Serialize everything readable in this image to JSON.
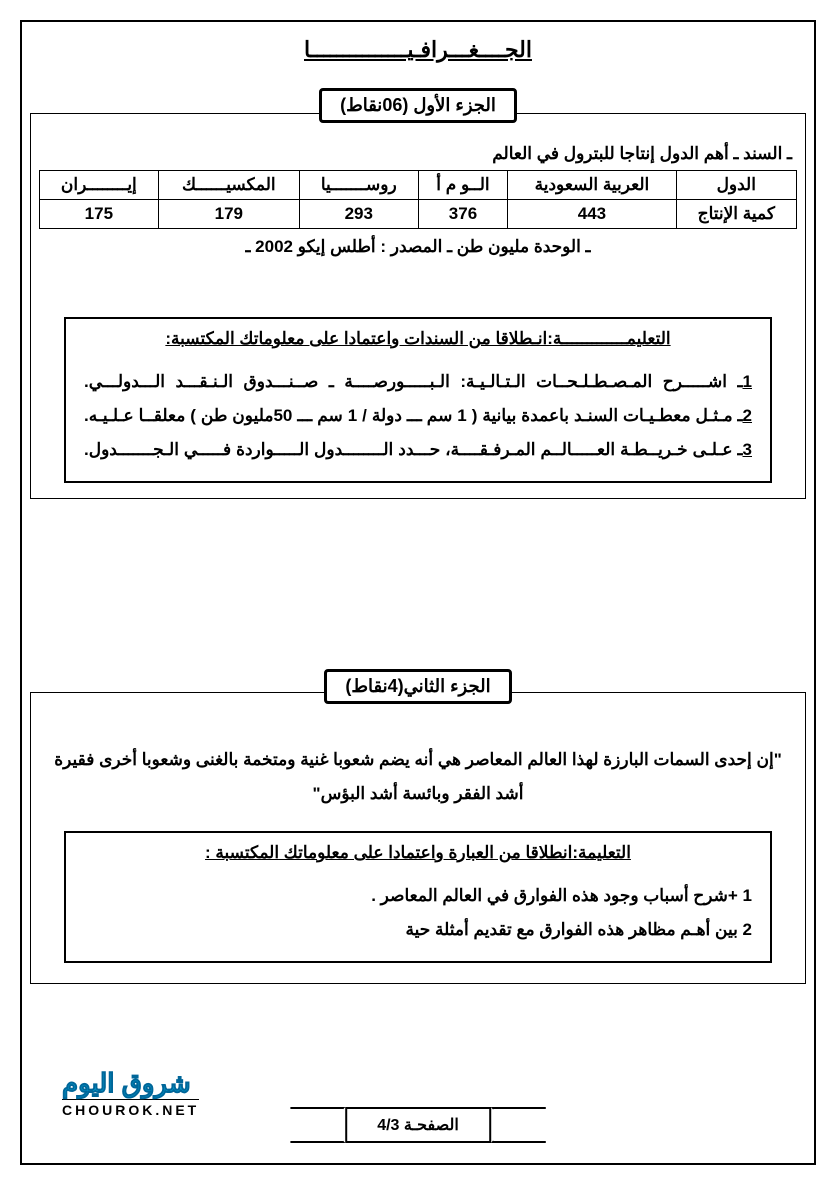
{
  "subject_title": "الجــــغـــرافـيـــــــــــــــا",
  "part1": {
    "header": "الجزء الأول (06نقاط)",
    "sanad_title": "ـ السند ـ أهم الدول إنتاجا للبترول في العالم",
    "table": {
      "columns": [
        "الدول",
        "العربية السعودية",
        "الــو م أ",
        "روســـــــيا",
        "المكسيــــــك",
        "إيــــــــران"
      ],
      "row_label": "كمية الإنتاج",
      "values": [
        "443",
        "376",
        "293",
        "179",
        "175"
      ]
    },
    "caption": "ـ الوحدة مليون طن ـ المصدر : أطلس إيكو 2002 ـ",
    "instruction_title": "التعليمـــــــــــــة:انـطلاقا من السندات واعتمادا على معلوماتك المكتسبة:",
    "q1_num": "1",
    "q1": "ـ اشـــــرح المـصـطـلـحــات الـتـالـيـة:   الـبـــــورصــــة ـ صــنـــدوق الـنـقـــد الـــدولـــي.",
    "q2_num": "2",
    "q2": "ـ مـثـل معطـيـات السنـد باعمدة بيانية ( 1 سم ـــ دولة / 1 سم ـــ 50مليون طن )  معلقــا عـلـيـه.",
    "q3_num": "3",
    "q3": "ـ عـلـى خـريــطـة العـــــالــم المـرفـقــــة، حـــدد الــــــــدول الـــــواردة فـــــي الـجـــــــدول."
  },
  "part2": {
    "header": "الجزء الثاني(4نقاط)",
    "quote": "\"إن إحدى السمات البارزة لهذا العالم المعاصر هي أنه يضم شعوبا غنية ومتخمة بالغنى وشعوبا أخرى فقيرة أشد الفقر وبائسة أشد البؤس\"",
    "instruction_title": "التعليمة:انطلاقا من العبارة واعتمادا على معلوماتك المكتسبة :",
    "q1": "1 +شرح أسباب وجود هذه الفوارق في العالم المعاصر .",
    "q2": "2 بين أهـم مظاهر هذه الفوارق مع تقديم أمثلة حية"
  },
  "page_number": "الصفحـة 4/3",
  "watermark": {
    "arabic": "شروق اليوم",
    "latin": "CHOUROK.NET"
  },
  "colors": {
    "text": "#000000",
    "accent": "#0099cc",
    "bg": "#ffffff"
  }
}
